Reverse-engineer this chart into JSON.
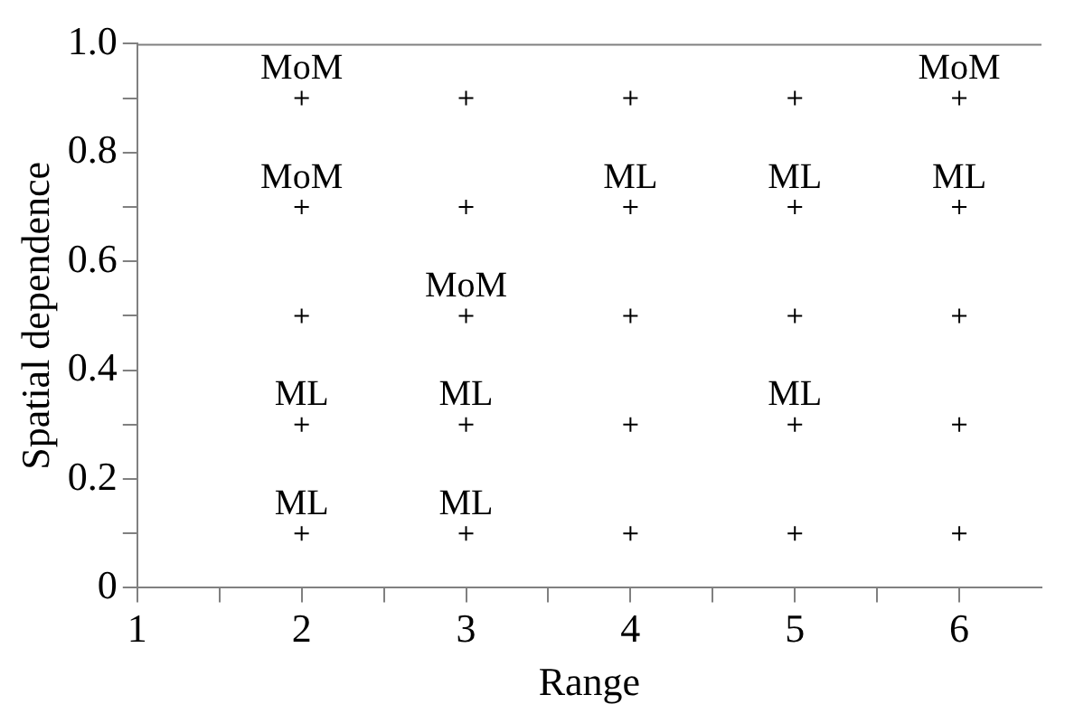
{
  "chart_data": {
    "type": "scatter",
    "xlabel": "Range",
    "ylabel": "Spatial dependence",
    "x": [
      2,
      2,
      2,
      2,
      2,
      3,
      3,
      3,
      3,
      3,
      4,
      4,
      4,
      4,
      4,
      5,
      5,
      5,
      5,
      5,
      6,
      6,
      6,
      6,
      6
    ],
    "values": [
      0.1,
      0.3,
      0.5,
      0.7,
      0.9,
      0.1,
      0.3,
      0.5,
      0.7,
      0.9,
      0.1,
      0.3,
      0.5,
      0.7,
      0.9,
      0.1,
      0.3,
      0.5,
      0.7,
      0.9,
      0.1,
      0.3,
      0.5,
      0.7,
      0.9
    ],
    "color": "#000000",
    "marker": "cross",
    "grid": false,
    "legend": false,
    "xlim": [
      1,
      6.5
    ],
    "xticks": [
      1,
      {
        "value": 1.5,
        "label": null
      },
      2,
      {
        "value": 2.5,
        "label": null
      },
      3,
      {
        "value": 3.5,
        "label": null
      },
      4,
      {
        "value": 4.5,
        "label": null
      },
      5,
      {
        "value": 5.5,
        "label": null
      },
      6
    ],
    "ylim": [
      0,
      1
    ],
    "yticks": [
      0,
      {
        "value": 0.1,
        "label": null
      },
      0.2,
      {
        "value": 0.3,
        "label": null
      },
      0.4,
      {
        "value": 0.5,
        "label": null
      },
      0.6,
      {
        "value": 0.7,
        "label": null
      },
      0.8,
      {
        "value": 0.9,
        "label": null
      },
      {
        "value": 1,
        "label": "1.0"
      }
    ],
    "annotations": [
      {
        "text": "MoM",
        "x": 2,
        "y": 0.9
      },
      {
        "text": "MoM",
        "x": 2,
        "y": 0.7
      },
      {
        "text": "ML",
        "x": 2,
        "y": 0.3
      },
      {
        "text": "ML",
        "x": 2,
        "y": 0.1
      },
      {
        "text": "MoM",
        "x": 3,
        "y": 0.5
      },
      {
        "text": "ML",
        "x": 3,
        "y": 0.3
      },
      {
        "text": "ML",
        "x": 3,
        "y": 0.1
      },
      {
        "text": "ML",
        "x": 4,
        "y": 0.7
      },
      {
        "text": "ML",
        "x": 5,
        "y": 0.7
      },
      {
        "text": "ML",
        "x": 5,
        "y": 0.3
      },
      {
        "text": "MoM",
        "x": 6,
        "y": 0.9
      },
      {
        "text": "ML",
        "x": 6,
        "y": 0.7
      }
    ]
  }
}
